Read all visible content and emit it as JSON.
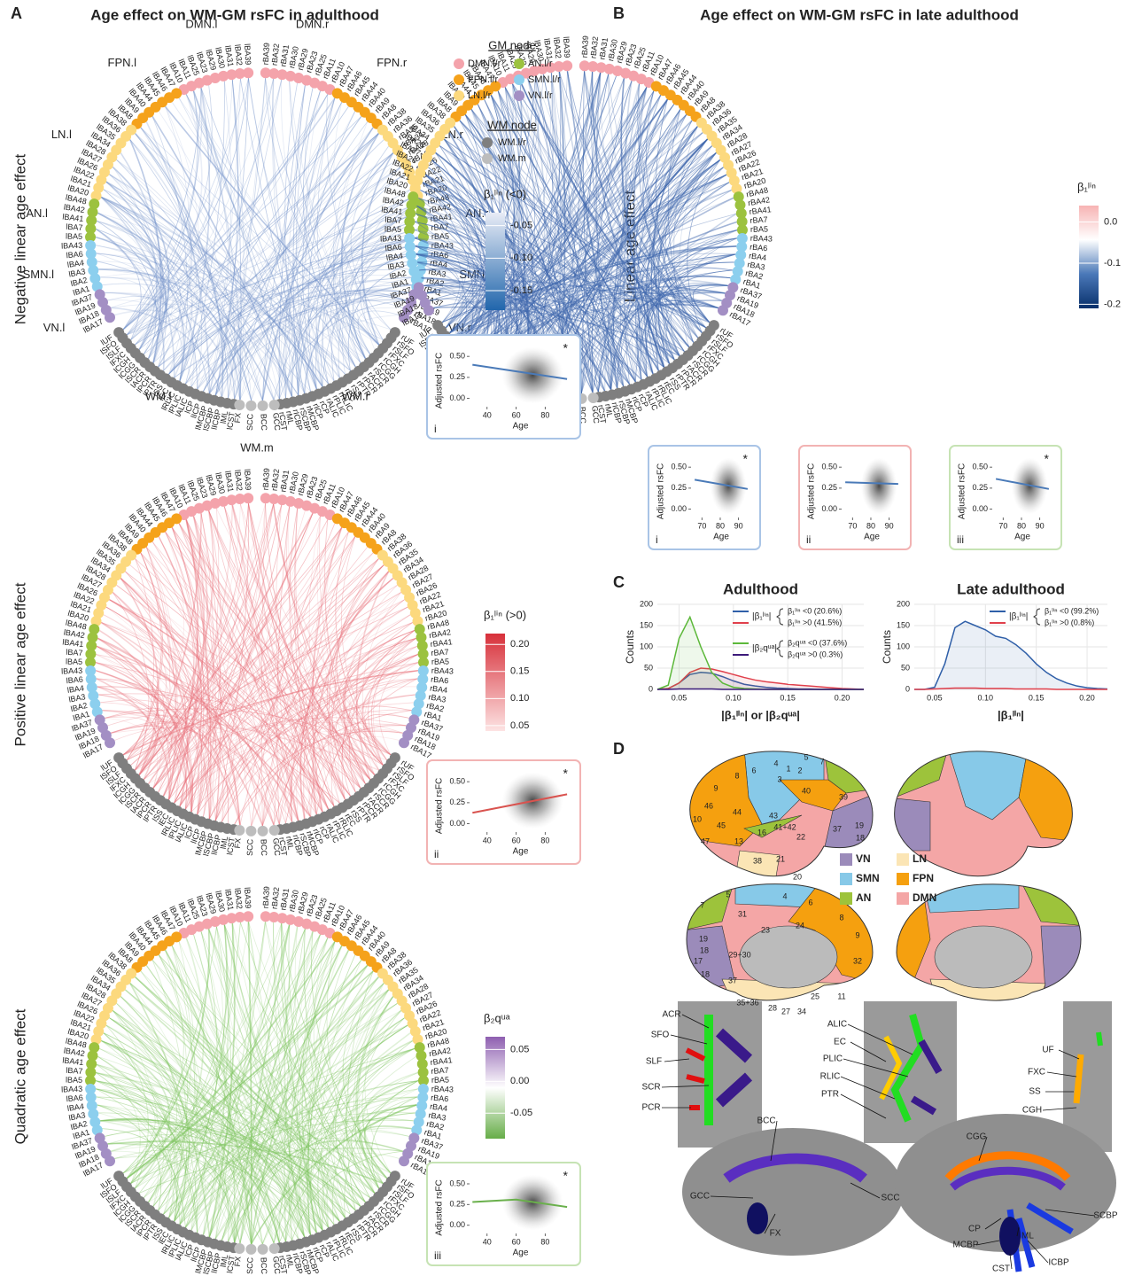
{
  "panels": {
    "A": "A",
    "B": "B",
    "C": "C",
    "D": "D"
  },
  "titles": {
    "A": "Age effect on WM-GM rsFC in adulthood",
    "B": "Age effect on WM-GM rsFC in late adulthood"
  },
  "row_labels": [
    "Negative linear age effect",
    "Positive linear age effect",
    "Quadratic age effect",
    "Linear age effect"
  ],
  "gm_networks": [
    {
      "name": "DMN",
      "color": "#f4a3ab",
      "left": [
        "lBA39",
        "lBA32",
        "lBA31",
        "lBA30",
        "lBA29",
        "lBA23",
        "lBA25",
        "lBA11",
        "lBA10"
      ],
      "right": [
        "rBA39",
        "rBA32",
        "rBA31",
        "rBA30",
        "rBA29",
        "rBA23",
        "rBA25",
        "rBA11",
        "rBA10"
      ]
    },
    {
      "name": "FPN",
      "color": "#f5a21b",
      "left": [
        "lBA47",
        "lBA46",
        "lBA45",
        "lBA44",
        "lBA40",
        "lBA9",
        "lBA8"
      ],
      "right": [
        "rBA47",
        "rBA46",
        "rBA45",
        "rBA44",
        "rBA40",
        "rBA9",
        "rBA8"
      ]
    },
    {
      "name": "LN",
      "color": "#fcd97e",
      "left": [
        "lBA38",
        "lBA36",
        "lBA35",
        "lBA34",
        "lBA28",
        "lBA27",
        "lBA26",
        "lBA22",
        "lBA21",
        "lBA20"
      ],
      "right": [
        "rBA38",
        "rBA36",
        "rBA35",
        "rBA34",
        "rBA28",
        "rBA27",
        "rBA26",
        "rBA22",
        "rBA21",
        "rBA20"
      ]
    },
    {
      "name": "AN",
      "color": "#9cc23f",
      "left": [
        "lBA48",
        "lBA42",
        "lBA41",
        "lBA7",
        "lBA5"
      ],
      "right": [
        "rBA48",
        "rBA42",
        "rBA41",
        "rBA7",
        "rBA5"
      ]
    },
    {
      "name": "SMN",
      "color": "#8ccfee",
      "left": [
        "lBA43",
        "lBA6",
        "lBA4",
        "lBA3",
        "lBA2",
        "lBA1"
      ],
      "right": [
        "rBA43",
        "rBA6",
        "rBA4",
        "rBA3",
        "rBA2",
        "rBA1"
      ]
    },
    {
      "name": "VN",
      "color": "#a38fc4",
      "left": [
        "lBA37",
        "lBA19",
        "lBA18",
        "lBA17"
      ],
      "right": [
        "rBA37",
        "rBA19",
        "rBA18",
        "rBA17"
      ]
    }
  ],
  "wm_nodes": {
    "color": "#7f7f7f",
    "mid_color": "#bdbdbd",
    "left": [
      "lUF",
      "lSFO",
      "lSLF",
      "lFXC",
      "lCGH",
      "lCGG",
      "lSCR",
      "lACR",
      "lPCR",
      "lPTR",
      "lSS",
      "lEC",
      "lRLIC",
      "lPLIC",
      "lALIC",
      "lCP",
      "lICP",
      "lMCBP",
      "lSCBP",
      "lICBP",
      "lML",
      "lCST"
    ],
    "mid": [
      "FX",
      "SCC",
      "BCC",
      "GCC"
    ],
    "right": [
      "rUF",
      "rSFO",
      "rSLF",
      "rFXC",
      "rCGH",
      "rCGG",
      "rSCR",
      "rACR",
      "rPCR",
      "rPTR",
      "rSS",
      "rEC",
      "rRLIC",
      "rPLIC",
      "rALIC",
      "rCP",
      "rICP",
      "rMCBP",
      "rSCBP",
      "rICBP",
      "rML",
      "rCST"
    ]
  },
  "network_labels": [
    "DMN.l",
    "DMN.r",
    "FPN.l",
    "FPN.r",
    "LN.l",
    "LN.r",
    "AN.l",
    "AN.r",
    "SMN.l",
    "SMN.r",
    "VN.l",
    "VN.r",
    "WM.l",
    "WM.r",
    "WM.m"
  ],
  "legend": {
    "gm_title": "GM node",
    "gm": [
      {
        "label": "DMN.l/r",
        "color": "#f4a3ab"
      },
      {
        "label": "AN.l/r",
        "color": "#9cc23f"
      },
      {
        "label": "FPN.l/r",
        "color": "#f5a21b"
      },
      {
        "label": "SMN.l/r",
        "color": "#8ccfee"
      },
      {
        "label": "LN.l/r",
        "color": "#fcd97e"
      },
      {
        "label": "VN.l/r",
        "color": "#a38fc4"
      }
    ],
    "wm_title": "WM node",
    "wm": [
      {
        "label": "WM.l/r",
        "color": "#7f7f7f"
      },
      {
        "label": "WM.m",
        "color": "#bdbdbd"
      }
    ]
  },
  "colorbars": [
    {
      "title": "β₁ˡⁱⁿ (<0)",
      "lim": [
        -0.18,
        -0.03
      ],
      "ticks": [
        {
          "value": -0.05,
          "label": "-0.05"
        },
        {
          "value": -0.1,
          "label": "-0.10"
        },
        -0.15
      ],
      "colors": [
        "#2166ac",
        "#e8ecf6"
      ]
    },
    {
      "title": "β₁ˡⁱⁿ (>0)",
      "lim": [
        0.04,
        0.22
      ],
      "ticks": [
        0.05,
        {
          "value": 0.1,
          "label": "0.10"
        },
        0.15,
        {
          "value": 0.2,
          "label": "0.20"
        }
      ],
      "colors": [
        "#fde3e3",
        "#d7303a"
      ]
    },
    {
      "title": "β₂qᵘᵃ",
      "lim": [
        -0.09,
        0.07
      ],
      "ticks": [
        0.05,
        {
          "value": 0,
          "label": "0.00"
        },
        -0.05
      ],
      "colors": [
        "#66ad48",
        "#ffffff",
        "#8e5fb0"
      ]
    },
    {
      "title": "β₁ˡⁱⁿ",
      "lim": [
        -0.21,
        0.04
      ],
      "ticks": [
        {
          "value": 0,
          "label": "0.0"
        },
        -0.1,
        -0.2
      ],
      "colors": [
        "#08306b",
        "#4a78b8",
        "#ffffff",
        "#f7b3b3"
      ]
    }
  ],
  "chart_data": [
    {
      "type": "line",
      "panel_label": "i",
      "annotation": "*",
      "xlabel": "Age",
      "ylabel": "Adjusted rsFC",
      "color": "#4a7ab8",
      "border": "#a9c4e6",
      "x": [
        30,
        95
      ],
      "values": [
        0.4,
        0.23
      ],
      "xlim": [
        28,
        98
      ],
      "ylim": [
        -0.1,
        0.65
      ],
      "xticks": [
        40,
        60,
        80
      ],
      "yticks": [
        {
          "value": 0,
          "label": "0.00"
        },
        0.25,
        {
          "value": 0.5,
          "label": "0.50"
        }
      ]
    },
    {
      "type": "line",
      "panel_label": "ii",
      "annotation": "*",
      "xlabel": "Age",
      "ylabel": "Adjusted rsFC",
      "color": "#d9534f",
      "border": "#f2b3b3",
      "x": [
        30,
        95
      ],
      "values": [
        0.13,
        0.35
      ],
      "xlim": [
        28,
        98
      ],
      "ylim": [
        -0.1,
        0.65
      ],
      "xticks": [
        40,
        60,
        80
      ],
      "yticks": [
        {
          "value": 0,
          "label": "0.00"
        },
        0.25,
        {
          "value": 0.5,
          "label": "0.50"
        }
      ]
    },
    {
      "type": "line",
      "panel_label": "iii",
      "annotation": "*",
      "xlabel": "Age",
      "ylabel": "Adjusted rsFC",
      "color": "#6ab04c",
      "border": "#c6e3b4",
      "x": [
        30,
        60,
        95
      ],
      "values": [
        0.28,
        0.31,
        0.22
      ],
      "xlim": [
        28,
        98
      ],
      "ylim": [
        -0.1,
        0.65
      ],
      "xticks": [
        40,
        60,
        80
      ],
      "yticks": [
        {
          "value": 0,
          "label": "0.00"
        },
        0.25,
        {
          "value": 0.5,
          "label": "0.50"
        }
      ]
    },
    {
      "type": "line",
      "panel_label": "i",
      "annotation": "*",
      "xlabel": "Age",
      "ylabel": "Adjusted rsFC",
      "color": "#4a7ab8",
      "border": "#a9c4e6",
      "x": [
        66,
        95
      ],
      "values": [
        0.35,
        0.24
      ],
      "xlim": [
        64,
        97
      ],
      "ylim": [
        -0.1,
        0.65
      ],
      "xticks": [
        70,
        80,
        90
      ],
      "yticks": [
        {
          "value": 0,
          "label": "0.00"
        },
        0.25,
        {
          "value": 0.5,
          "label": "0.50"
        }
      ]
    },
    {
      "type": "line",
      "panel_label": "ii",
      "xlabel": "Age",
      "ylabel": "Adjusted rsFC",
      "color": "#4a7ab8",
      "border": "#f2b3b3",
      "x": [
        66,
        95
      ],
      "values": [
        0.32,
        0.3
      ],
      "xlim": [
        64,
        97
      ],
      "ylim": [
        -0.1,
        0.65
      ],
      "xticks": [
        70,
        80,
        90
      ],
      "yticks": [
        {
          "value": 0,
          "label": "0.00"
        },
        0.25,
        {
          "value": 0.5,
          "label": "0.50"
        }
      ]
    },
    {
      "type": "line",
      "panel_label": "iii",
      "annotation": "*",
      "xlabel": "Age",
      "ylabel": "Adjusted rsFC",
      "color": "#4a7ab8",
      "border": "#c6e3b4",
      "x": [
        66,
        95
      ],
      "values": [
        0.36,
        0.24
      ],
      "xlim": [
        64,
        97
      ],
      "ylim": [
        -0.1,
        0.65
      ],
      "xticks": [
        70,
        80,
        90
      ],
      "yticks": [
        {
          "value": 0,
          "label": "0.00"
        },
        0.25,
        {
          "value": 0.5,
          "label": "0.50"
        }
      ]
    },
    {
      "type": "density",
      "title": "Adulthood",
      "xlabel": "|β₁ˡⁱⁿ| or |β₂qᵘᵃ|",
      "ylabel": "Counts",
      "legend_groups": [
        "|β₁ˡⁱⁿ|",
        "|β₂qᵘᵃ|"
      ],
      "x": [
        0.03,
        0.04,
        0.05,
        0.06,
        0.07,
        0.08,
        0.09,
        0.1,
        0.11,
        0.12,
        0.13,
        0.14,
        0.15,
        0.16,
        0.17,
        0.18,
        0.19,
        0.2,
        0.21,
        0.22
      ],
      "xlim": [
        0.03,
        0.22
      ],
      "ylim": [
        0,
        200
      ],
      "xticks": [
        0.05,
        {
          "value": 0.1,
          "label": "0.10"
        },
        0.15,
        {
          "value": 0.2,
          "label": "0.20"
        }
      ],
      "yticks": [
        0,
        50,
        100,
        150,
        200
      ],
      "grid": true,
      "series": [
        {
          "name": "β₁ˡⁱⁿ <0  (20.6%)",
          "color": "#2f5fa8",
          "values": [
            0,
            2,
            15,
            35,
            40,
            38,
            30,
            20,
            12,
            8,
            5,
            3,
            2,
            1,
            1,
            0,
            0,
            0,
            0,
            0
          ]
        },
        {
          "name": "β₁ˡⁱⁿ >0  (41.5%)",
          "color": "#e0404c",
          "values": [
            0,
            2,
            15,
            40,
            50,
            48,
            42,
            35,
            28,
            22,
            18,
            15,
            12,
            10,
            8,
            6,
            4,
            2,
            1,
            0
          ]
        },
        {
          "name": "β₂qᵘᵃ <0 (37.6%)",
          "color": "#5cb83a",
          "values": [
            0,
            10,
            120,
            170,
            100,
            40,
            15,
            5,
            2,
            1,
            0,
            0,
            0,
            0,
            0,
            0,
            0,
            0,
            0,
            0
          ]
        },
        {
          "name": "β₂qᵘᵃ >0  (0.3%)",
          "color": "#3c1a7a",
          "values": [
            0,
            0,
            1,
            1,
            1,
            1,
            0,
            0,
            0,
            0,
            0,
            0,
            0,
            0,
            0,
            0,
            0,
            0,
            0,
            0
          ]
        }
      ]
    },
    {
      "type": "density",
      "title": "Late adulthood",
      "xlabel": "|β₁ˡⁱⁿ|",
      "ylabel": "Counts",
      "legend_groups": [
        "|β₁ˡⁱⁿ|"
      ],
      "x": [
        0.03,
        0.04,
        0.05,
        0.06,
        0.07,
        0.08,
        0.09,
        0.1,
        0.11,
        0.12,
        0.13,
        0.14,
        0.15,
        0.16,
        0.17,
        0.18,
        0.19,
        0.2,
        0.21,
        0.22
      ],
      "xlim": [
        0.03,
        0.22
      ],
      "ylim": [
        0,
        200
      ],
      "xticks": [
        0.05,
        {
          "value": 0.1,
          "label": "0.10"
        },
        0.15,
        {
          "value": 0.2,
          "label": "0.20"
        }
      ],
      "yticks": [
        0,
        50,
        100,
        150,
        200
      ],
      "grid": true,
      "series": [
        {
          "name": "β₁ˡⁱⁿ <0 (99.2%)",
          "color": "#2f5fa8",
          "values": [
            0,
            0,
            5,
            60,
            145,
            160,
            150,
            140,
            125,
            120,
            105,
            85,
            60,
            40,
            25,
            15,
            8,
            4,
            2,
            1
          ]
        },
        {
          "name": "β₁ˡⁱⁿ >0   (0.8%)",
          "color": "#e0404c",
          "values": [
            0,
            0,
            1,
            2,
            3,
            3,
            3,
            2,
            2,
            2,
            1,
            1,
            1,
            1,
            0,
            0,
            0,
            0,
            0,
            0
          ]
        }
      ]
    }
  ],
  "brain": {
    "networks": [
      {
        "name": "VN",
        "color": "#9b8bba"
      },
      {
        "name": "LN",
        "color": "#fbe5b5"
      },
      {
        "name": "SMN",
        "color": "#87c9e8"
      },
      {
        "name": "FPN",
        "color": "#f5a00f"
      },
      {
        "name": "AN",
        "color": "#9dc33b"
      },
      {
        "name": "DMN",
        "color": "#f4a6a6"
      }
    ],
    "lateral_areas": [
      "4",
      "1",
      "2",
      "3",
      "5",
      "7",
      "6",
      "8",
      "9",
      "40",
      "39",
      "46",
      "44",
      "10",
      "45",
      "43",
      "41+42",
      "16",
      "22",
      "47",
      "13",
      "38",
      "21",
      "37",
      "19",
      "18",
      "20"
    ],
    "medial_areas": [
      "7",
      "5",
      "4",
      "6",
      "8",
      "9",
      "31",
      "23",
      "24",
      "32",
      "19",
      "18",
      "17",
      "29+30",
      "18",
      "37",
      "35+36",
      "28",
      "27",
      "34",
      "25",
      "11"
    ],
    "tracts": [
      "ACR",
      "SFO",
      "SLF",
      "SCR",
      "PCR",
      "ALIC",
      "EC",
      "PLIC",
      "RLIC",
      "PTR",
      "UF",
      "FXC",
      "SS",
      "CGH",
      "CGG",
      "BCC",
      "GCC",
      "FX",
      "SCC",
      "SCBP",
      "CP",
      "MCBP",
      "ML",
      "CST",
      "ICBP"
    ]
  }
}
